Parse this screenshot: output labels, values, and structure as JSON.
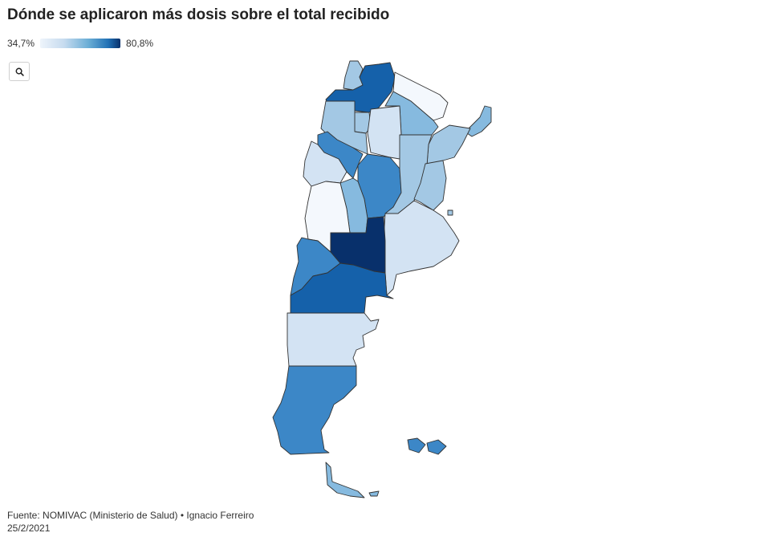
{
  "title": "Dónde se aplicaron más dosis sobre el total recibido",
  "legend": {
    "min_label": "34,7%",
    "max_label": "80,8%"
  },
  "zoom_icon": "search-icon",
  "map": {
    "colors": {
      "very_light": "#f4f8fd",
      "light": "#d3e3f3",
      "light_mid": "#a3c8e4",
      "mid": "#86badf",
      "medium": "#3c87c7",
      "dark": "#1561aa",
      "darkest": "#08306b"
    },
    "provinces": [
      "jujuy",
      "salta",
      "formosa",
      "chaco",
      "misiones",
      "tucuman",
      "catamarca",
      "santiago-del-estero",
      "corrientes",
      "la-rioja",
      "cordoba",
      "santa-fe",
      "entre-rios",
      "san-juan",
      "san-luis",
      "mendoza",
      "buenos-aires",
      "caba",
      "la-pampa",
      "neuquen",
      "rio-negro",
      "chubut",
      "santa-cruz",
      "tierra-del-fuego",
      "islas-malvinas"
    ]
  },
  "footer": {
    "source": "Fuente: NOMIVAC (Ministerio de Salud) • Ignacio Ferreiro",
    "date": "25/2/2021"
  }
}
